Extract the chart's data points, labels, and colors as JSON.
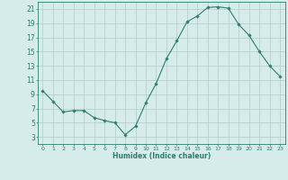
{
  "x": [
    0,
    1,
    2,
    3,
    4,
    5,
    6,
    7,
    8,
    9,
    10,
    11,
    12,
    13,
    14,
    15,
    16,
    17,
    18,
    19,
    20,
    21,
    22,
    23
  ],
  "y": [
    9.5,
    8.0,
    6.5,
    6.7,
    6.7,
    5.7,
    5.3,
    5.0,
    3.3,
    4.5,
    7.8,
    10.5,
    14.0,
    16.5,
    19.2,
    20.0,
    21.2,
    21.3,
    21.1,
    18.8,
    17.3,
    15.0,
    13.0,
    11.5
  ],
  "line_color": "#2e7d6e",
  "marker": "D",
  "marker_size": 1.8,
  "bg_color": "#d5ecea",
  "grid_color": "#b0ccc9",
  "axis_color": "#2e7d6e",
  "xlabel": "Humidex (Indice chaleur)",
  "xlim": [
    -0.5,
    23.5
  ],
  "ylim": [
    2,
    22
  ],
  "yticks": [
    3,
    5,
    7,
    9,
    11,
    13,
    15,
    17,
    19,
    21
  ],
  "xticks": [
    0,
    1,
    2,
    3,
    4,
    5,
    6,
    7,
    8,
    9,
    10,
    11,
    12,
    13,
    14,
    15,
    16,
    17,
    18,
    19,
    20,
    21,
    22,
    23
  ]
}
